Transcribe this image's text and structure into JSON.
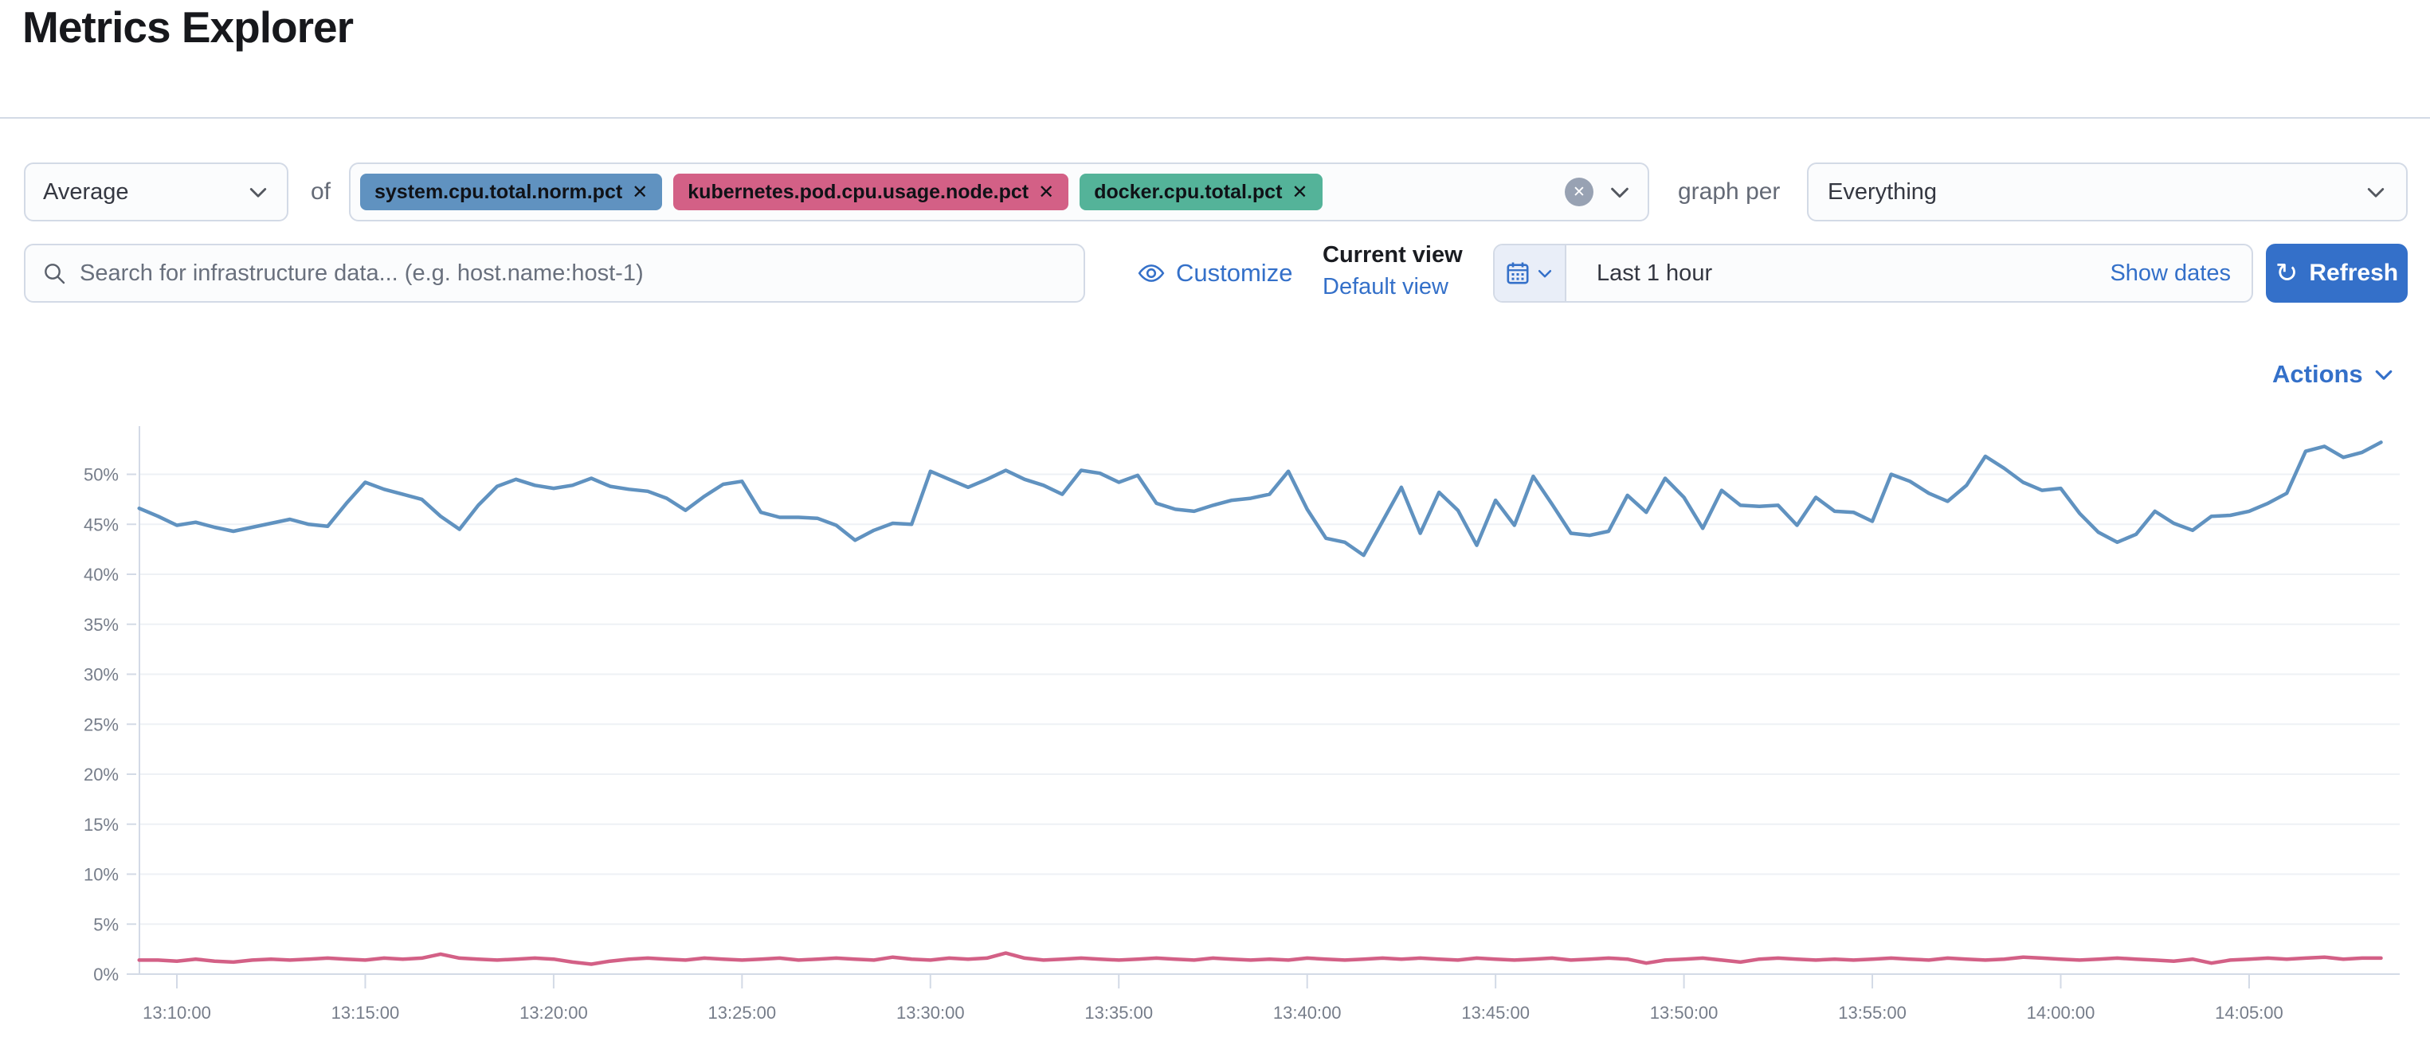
{
  "page": {
    "title": "Metrics Explorer"
  },
  "toolbar": {
    "aggregation_value": "Average",
    "of_label": "of",
    "metrics": [
      {
        "label": "system.cpu.total.norm.pct",
        "color": "#6092C0"
      },
      {
        "label": "kubernetes.pod.cpu.usage.node.pct",
        "color": "#D36086"
      },
      {
        "label": "docker.cpu.total.pct",
        "color": "#54B399"
      }
    ],
    "graph_per_label": "graph per",
    "graph_per_value": "Everything"
  },
  "searchbar": {
    "placeholder": "Search for infrastructure data... (e.g. host.name:host-1)",
    "customize_label": "Customize",
    "current_view_label": "Current view",
    "view_name": "Default view",
    "time_range": "Last 1 hour",
    "show_dates_label": "Show dates",
    "refresh_label": "Refresh"
  },
  "chart_header": {
    "actions_label": "Actions"
  },
  "icons": {
    "remove_glyph": "✕",
    "clear_glyph": "✕",
    "refresh_glyph": "↻"
  },
  "colors": {
    "accent_link": "#3470C9",
    "grid": "#eef1f5",
    "axis": "#d3dae6",
    "tick_label": "#767d8a"
  },
  "chart_data": {
    "type": "line",
    "title": "",
    "unit": "%",
    "x_start": "13:09:00",
    "x_end": "14:08:30",
    "x_step_seconds": 30,
    "x_tick_labels": [
      "13:10:00",
      "13:15:00",
      "13:20:00",
      "13:25:00",
      "13:30:00",
      "13:35:00",
      "13:40:00",
      "13:45:00",
      "13:50:00",
      "13:55:00",
      "14:00:00",
      "14:05:00"
    ],
    "y_tick_labels": [
      "0%",
      "5%",
      "10%",
      "15%",
      "20%",
      "25%",
      "30%",
      "35%",
      "40%",
      "45%",
      "50%"
    ],
    "ylim": [
      0,
      56
    ],
    "grid": true,
    "legend": "none",
    "series": [
      {
        "name": "system.cpu.total.norm.pct",
        "color": "#6092C0",
        "values": [
          46.6,
          45.8,
          44.9,
          45.2,
          44.7,
          44.3,
          44.7,
          45.1,
          45.5,
          45.0,
          44.8,
          47.1,
          49.2,
          48.5,
          48.0,
          47.5,
          45.8,
          44.5,
          46.9,
          48.8,
          49.5,
          48.9,
          48.6,
          48.9,
          49.6,
          48.8,
          48.5,
          48.3,
          47.6,
          46.4,
          47.8,
          49.0,
          49.3,
          46.2,
          45.7,
          45.7,
          45.6,
          44.9,
          43.4,
          44.4,
          45.1,
          45.0,
          50.3,
          49.5,
          48.7,
          49.5,
          50.4,
          49.5,
          48.9,
          48.0,
          50.4,
          50.1,
          49.2,
          49.9,
          47.1,
          46.5,
          46.3,
          46.9,
          47.4,
          47.6,
          48.0,
          50.3,
          46.5,
          43.6,
          43.2,
          41.9,
          45.3,
          48.7,
          44.1,
          48.2,
          46.4,
          42.9,
          47.4,
          44.9,
          49.8,
          47.0,
          44.1,
          43.9,
          44.3,
          47.9,
          46.2,
          49.6,
          47.7,
          44.6,
          48.4,
          46.9,
          46.8,
          46.9,
          44.9,
          47.7,
          46.3,
          46.2,
          45.3,
          50.0,
          49.3,
          48.1,
          47.3,
          48.9,
          51.8,
          50.6,
          49.2,
          48.4,
          48.6,
          46.1,
          44.2,
          43.2,
          44.0,
          46.3,
          45.1,
          44.4,
          45.8,
          45.9,
          46.3,
          47.1,
          48.1,
          52.3,
          52.8,
          51.7,
          52.2,
          53.2
        ]
      },
      {
        "name": "kubernetes.pod.cpu.usage.node.pct",
        "color": "#D36086",
        "values": [
          1.4,
          1.4,
          1.3,
          1.5,
          1.3,
          1.2,
          1.4,
          1.5,
          1.4,
          1.5,
          1.6,
          1.5,
          1.4,
          1.6,
          1.5,
          1.6,
          2.0,
          1.6,
          1.5,
          1.4,
          1.5,
          1.6,
          1.5,
          1.2,
          1.0,
          1.3,
          1.5,
          1.6,
          1.5,
          1.4,
          1.6,
          1.5,
          1.4,
          1.5,
          1.6,
          1.4,
          1.5,
          1.6,
          1.5,
          1.4,
          1.7,
          1.5,
          1.4,
          1.6,
          1.5,
          1.6,
          2.1,
          1.6,
          1.4,
          1.5,
          1.6,
          1.5,
          1.4,
          1.5,
          1.6,
          1.5,
          1.4,
          1.6,
          1.5,
          1.4,
          1.5,
          1.4,
          1.6,
          1.5,
          1.4,
          1.5,
          1.6,
          1.5,
          1.6,
          1.5,
          1.4,
          1.6,
          1.5,
          1.4,
          1.5,
          1.6,
          1.4,
          1.5,
          1.6,
          1.5,
          1.1,
          1.4,
          1.5,
          1.6,
          1.4,
          1.2,
          1.5,
          1.6,
          1.5,
          1.4,
          1.5,
          1.4,
          1.5,
          1.6,
          1.5,
          1.4,
          1.6,
          1.5,
          1.4,
          1.5,
          1.7,
          1.6,
          1.5,
          1.4,
          1.5,
          1.6,
          1.5,
          1.4,
          1.3,
          1.5,
          1.1,
          1.4,
          1.5,
          1.6,
          1.5,
          1.6,
          1.7,
          1.5,
          1.6,
          1.6
        ]
      }
    ]
  }
}
